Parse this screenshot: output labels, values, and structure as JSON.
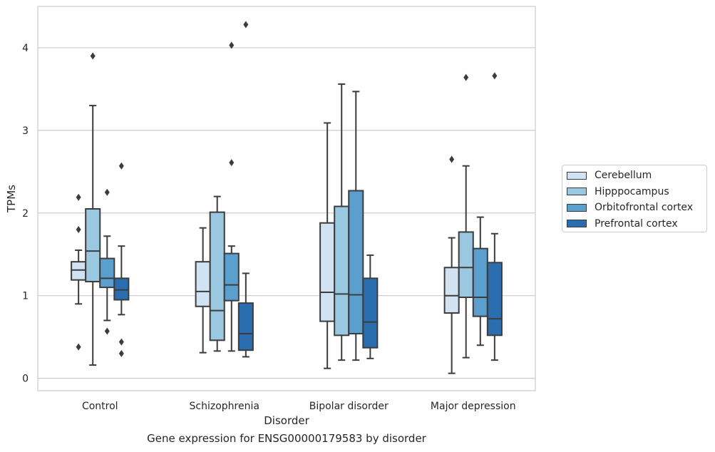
{
  "chart_data": {
    "type": "box",
    "title": "",
    "caption": "Gene expression for ENSG00000179583 by disorder",
    "xlabel": "Disorder",
    "ylabel": "TPMs",
    "ylim": [
      -0.15,
      4.5
    ],
    "yticks": [
      0,
      1,
      2,
      3,
      4
    ],
    "grid": "horizontal",
    "legend_position": "right",
    "categories": [
      "Control",
      "Schizophrenia",
      "Bipolar disorder",
      "Major depression"
    ],
    "series": [
      {
        "name": "Cerebellum",
        "color": "#d1e2f2",
        "boxes": [
          {
            "whislo": 0.9,
            "q1": 1.19,
            "med": 1.31,
            "q3": 1.41,
            "whishi": 1.55,
            "fliers": [
              2.19,
              1.8,
              0.38
            ]
          },
          {
            "whislo": 0.31,
            "q1": 0.87,
            "med": 1.05,
            "q3": 1.41,
            "whishi": 1.82,
            "fliers": []
          },
          {
            "whislo": 0.12,
            "q1": 0.69,
            "med": 1.04,
            "q3": 1.88,
            "whishi": 3.09,
            "fliers": []
          },
          {
            "whislo": 0.06,
            "q1": 0.79,
            "med": 1.0,
            "q3": 1.34,
            "whishi": 1.7,
            "fliers": [
              2.65
            ]
          }
        ]
      },
      {
        "name": "Hipppocampus",
        "color": "#9ac8e0",
        "boxes": [
          {
            "whislo": 0.16,
            "q1": 1.17,
            "med": 1.54,
            "q3": 2.05,
            "whishi": 3.3,
            "fliers": [
              3.9
            ]
          },
          {
            "whislo": 0.33,
            "q1": 0.46,
            "med": 0.82,
            "q3": 2.01,
            "whishi": 2.2,
            "fliers": []
          },
          {
            "whislo": 0.22,
            "q1": 0.52,
            "med": 1.02,
            "q3": 2.08,
            "whishi": 3.56,
            "fliers": []
          },
          {
            "whislo": 0.25,
            "q1": 0.98,
            "med": 1.34,
            "q3": 1.77,
            "whishi": 2.57,
            "fliers": [
              3.64
            ]
          }
        ]
      },
      {
        "name": "Orbitofrontal cortex",
        "color": "#5b9fcf",
        "boxes": [
          {
            "whislo": 0.7,
            "q1": 1.1,
            "med": 1.21,
            "q3": 1.45,
            "whishi": 1.72,
            "fliers": [
              2.25,
              0.57
            ]
          },
          {
            "whislo": 0.33,
            "q1": 0.94,
            "med": 1.13,
            "q3": 1.51,
            "whishi": 1.6,
            "fliers": [
              4.03,
              2.61
            ]
          },
          {
            "whislo": 0.22,
            "q1": 0.54,
            "med": 1.01,
            "q3": 2.27,
            "whishi": 3.47,
            "fliers": []
          },
          {
            "whislo": 0.4,
            "q1": 0.75,
            "med": 0.98,
            "q3": 1.57,
            "whishi": 1.95,
            "fliers": []
          }
        ]
      },
      {
        "name": "Prefrontal cortex",
        "color": "#2a6eb0",
        "boxes": [
          {
            "whislo": 0.77,
            "q1": 0.95,
            "med": 1.07,
            "q3": 1.21,
            "whishi": 1.6,
            "fliers": [
              2.57,
              0.44,
              0.3
            ]
          },
          {
            "whislo": 0.26,
            "q1": 0.34,
            "med": 0.54,
            "q3": 0.91,
            "whishi": 1.27,
            "fliers": [
              4.28
            ]
          },
          {
            "whislo": 0.24,
            "q1": 0.37,
            "med": 0.68,
            "q3": 1.21,
            "whishi": 1.49,
            "fliers": []
          },
          {
            "whislo": 0.22,
            "q1": 0.52,
            "med": 0.72,
            "q3": 1.4,
            "whishi": 1.75,
            "fliers": [
              3.66
            ]
          }
        ]
      }
    ]
  }
}
